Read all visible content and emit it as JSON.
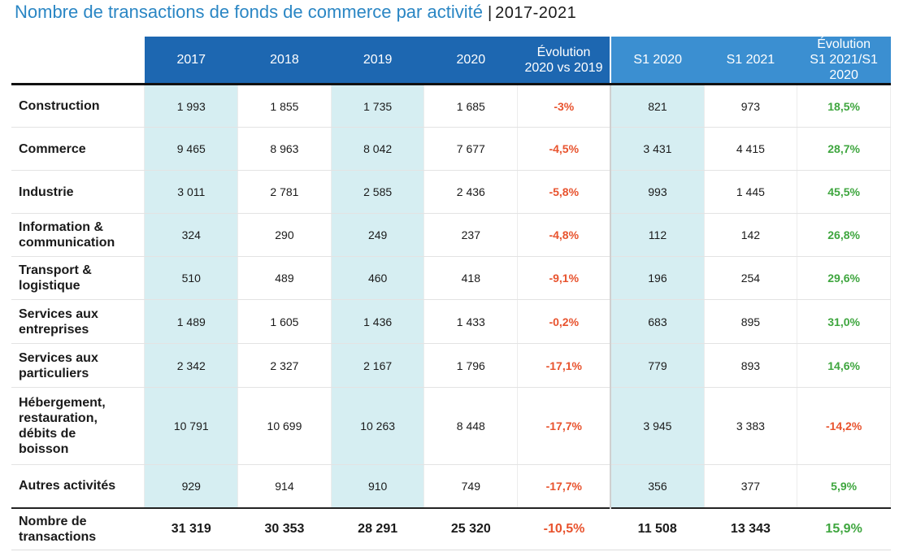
{
  "title": {
    "main": "Nombre de transactions de fonds de commerce par activité",
    "separator": "|",
    "years": "2017-2021"
  },
  "colors": {
    "header_dark": "#1d67b1",
    "header_light": "#3b8fd1",
    "highlight": "#d6eef2",
    "negative": "#e8532e",
    "positive": "#3fa63f",
    "title": "#2a86c4"
  },
  "chart_data": {
    "type": "table",
    "title": "Nombre de transactions de fonds de commerce par activité | 2017-2021",
    "columns": [
      "2017",
      "2018",
      "2019",
      "2020",
      "Évolution\n2020 vs 2019",
      "S1 2020",
      "S1 2021",
      "Évolution\nS1 2021/S1 2020"
    ],
    "rows": [
      {
        "label": "Construction",
        "values": [
          "1 993",
          "1 855",
          "1 735",
          "1 685",
          "-3%",
          "821",
          "973",
          "18,5%"
        ]
      },
      {
        "label": "Commerce",
        "values": [
          "9 465",
          "8 963",
          "8 042",
          "7 677",
          "-4,5%",
          "3 431",
          "4 415",
          "28,7%"
        ]
      },
      {
        "label": "Industrie",
        "values": [
          "3 011",
          "2 781",
          "2 585",
          "2 436",
          "-5,8%",
          "993",
          "1 445",
          "45,5%"
        ]
      },
      {
        "label": "Information &\ncommunication",
        "values": [
          "324",
          "290",
          "249",
          "237",
          "-4,8%",
          "112",
          "142",
          "26,8%"
        ]
      },
      {
        "label": "Transport &\nlogistique",
        "values": [
          "510",
          "489",
          "460",
          "418",
          "-9,1%",
          "196",
          "254",
          "29,6%"
        ]
      },
      {
        "label": "Services aux\nentreprises",
        "values": [
          "1 489",
          "1 605",
          "1 436",
          "1 433",
          "-0,2%",
          "683",
          "895",
          "31,0%"
        ]
      },
      {
        "label": "Services aux\nparticuliers",
        "values": [
          "2 342",
          "2 327",
          "2 167",
          "1 796",
          "-17,1%",
          "779",
          "893",
          "14,6%"
        ]
      },
      {
        "label": "Hébergement,\nrestauration,\ndébits de\nboisson",
        "values": [
          "10 791",
          "10 699",
          "10 263",
          "8 448",
          "-17,7%",
          "3 945",
          "3 383",
          "-14,2%"
        ]
      },
      {
        "label": "Autres activités",
        "values": [
          "929",
          "914",
          "910",
          "749",
          "-17,7%",
          "356",
          "377",
          "5,9%"
        ]
      }
    ],
    "total": {
      "label": "Nombre de\ntransactions",
      "values": [
        "31 319",
        "30 353",
        "28 291",
        "25 320",
        "-10,5%",
        "11 508",
        "13 343",
        "15,9%"
      ]
    }
  }
}
